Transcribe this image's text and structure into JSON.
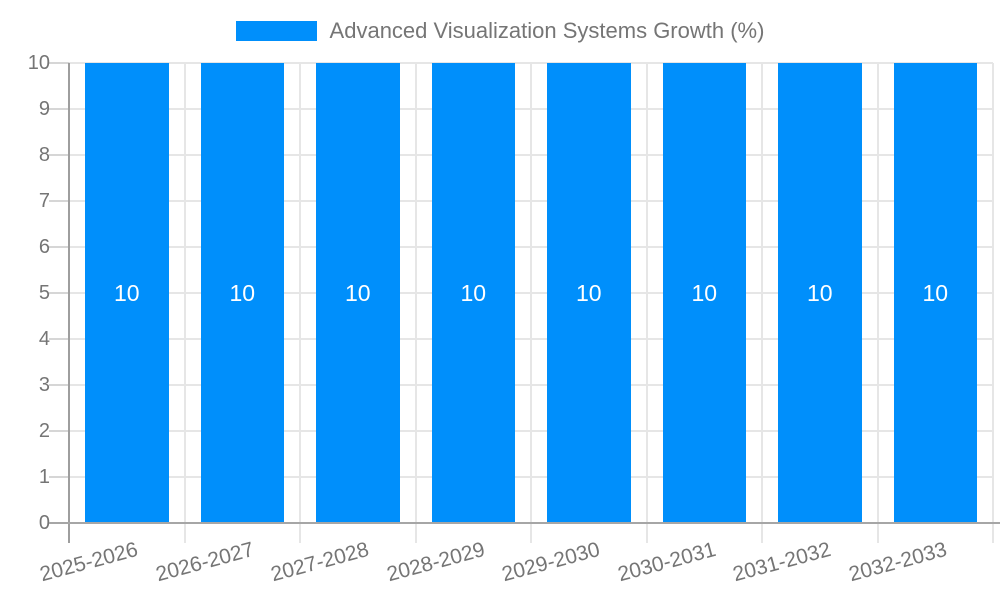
{
  "chart_data": {
    "type": "bar",
    "title": "Advanced Visualization Systems Growth (%)",
    "categories": [
      "2025-2026",
      "2026-2027",
      "2027-2028",
      "2028-2029",
      "2029-2030",
      "2030-2031",
      "2031-2032",
      "2032-2033"
    ],
    "values": [
      10,
      10,
      10,
      10,
      10,
      10,
      10,
      10
    ],
    "bar_value_labels": [
      "10",
      "10",
      "10",
      "10",
      "10",
      "10",
      "10",
      "10"
    ],
    "xlabel": "",
    "ylabel": "",
    "ylim": [
      0,
      10
    ],
    "yticks": [
      0,
      1,
      2,
      3,
      4,
      5,
      6,
      7,
      8,
      9,
      10
    ],
    "grid": true,
    "legend_position": "top",
    "colors": {
      "bar": "#008FFB",
      "bar_value_text": "#ffffff",
      "grid_line": "#e6e6e6",
      "axis_line": "#9e9e9e",
      "baseline": "#a6a6a6",
      "axis_text": "#757575",
      "legend_text": "#757575",
      "background": "#ffffff"
    }
  }
}
